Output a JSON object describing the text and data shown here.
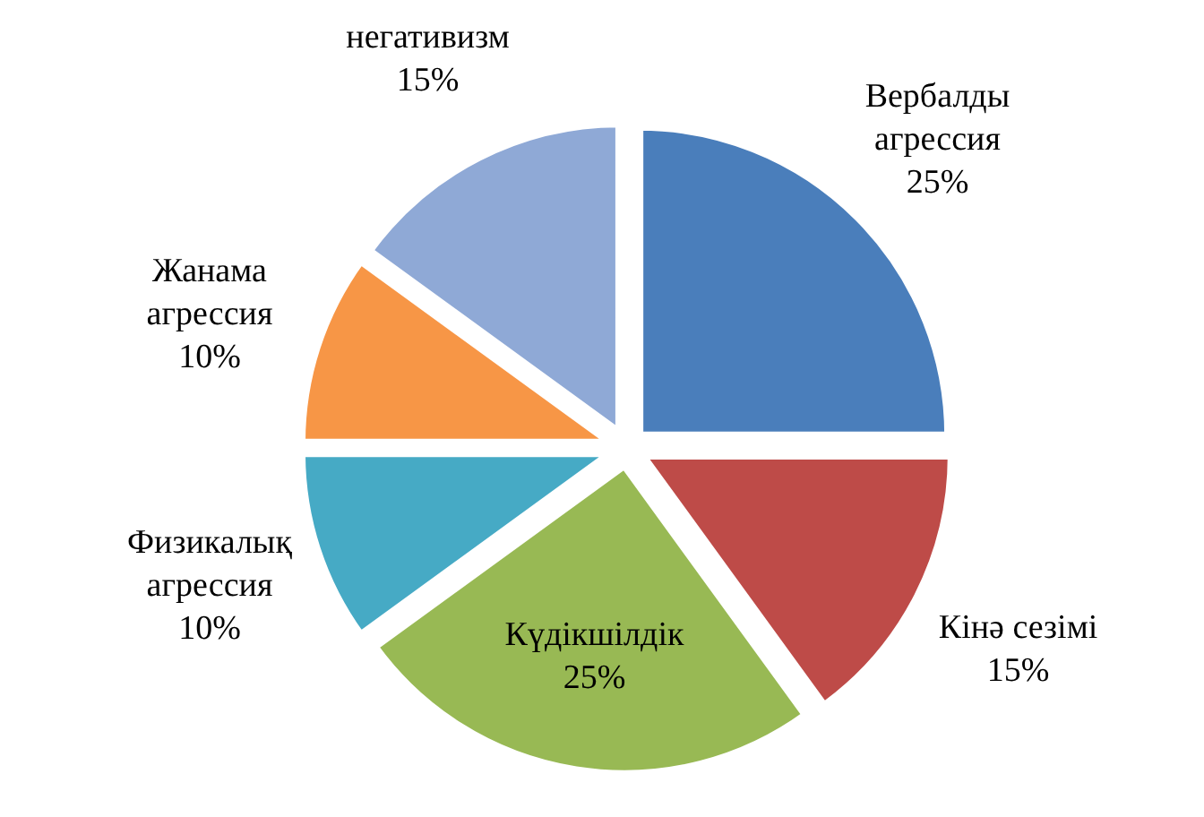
{
  "chart_data": {
    "type": "pie",
    "categories": [
      "Вербалды агрессия",
      "Кінә сезімі",
      "Күдікшілдік",
      "Физикалық агрессия",
      "Жанама агрессия",
      "негативизм"
    ],
    "values": [
      25,
      15,
      25,
      10,
      10,
      15
    ],
    "value_labels": [
      "25%",
      "15%",
      "25%",
      "10%",
      "10%",
      "15%"
    ],
    "data_labels": true,
    "colors": [
      "#4a7ebb",
      "#be4b48",
      "#98b954",
      "#46aac5",
      "#f79646",
      "#8fa9d6"
    ]
  }
}
